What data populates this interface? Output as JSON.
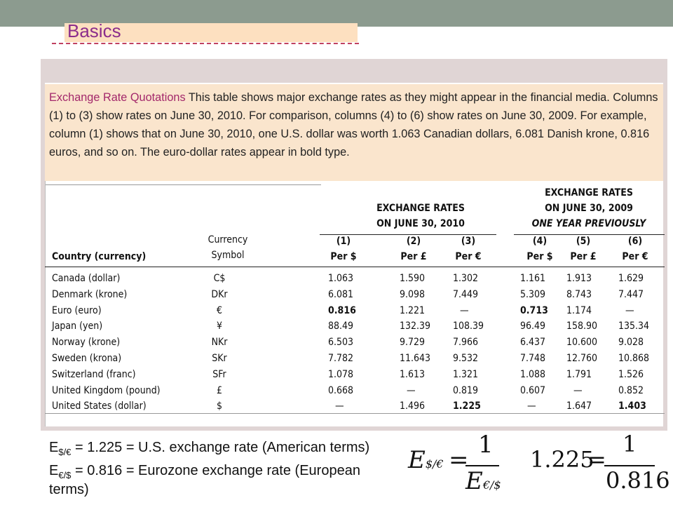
{
  "slide": {
    "title": "Basics"
  },
  "caption": {
    "lead": "Exchange Rate Quotations",
    "text": " This table shows major exchange rates as they might appear in the financial media. Columns (1) to (3) show rates on June 30, 2010. For comparison, columns (4) to (6) show rates on June 30, 2009. For example, column (1) shows that on June 30, 2010, one U.S. dollar was worth 1.063 Canadian dollars, 6.081 Danish krone, 0.816 euros, and so on. The euro-dollar rates appear in bold type."
  },
  "table": {
    "country_header": "Country (currency)",
    "symbol_header_1": "Currency",
    "symbol_header_2": "Symbol",
    "group1_line1": "EXCHANGE RATES",
    "group1_line2": "ON JUNE 30, 2010",
    "group2_line1": "EXCHANGE RATES",
    "group2_line2": "ON JUNE 30, 2009",
    "group2_line3": "ONE YEAR PREVIOUSLY",
    "col_nums": [
      "(1)",
      "(2)",
      "(3)",
      "(4)",
      "(5)",
      "(6)"
    ],
    "col_units": [
      "Per $",
      "Per £",
      "Per €",
      "Per $",
      "Per £",
      "Per €"
    ],
    "rows": [
      {
        "country": "Canada (dollar)",
        "symbol": "C$",
        "v": [
          "1.063",
          "1.590",
          "1.302",
          "1.161",
          "1.913",
          "1.629"
        ]
      },
      {
        "country": "Denmark (krone)",
        "symbol": "DKr",
        "v": [
          "6.081",
          "9.098",
          "7.449",
          "5.309",
          "8.743",
          "7.447"
        ]
      },
      {
        "country": "Euro (euro)",
        "symbol": "€",
        "v": [
          "0.816",
          "1.221",
          "—",
          "0.713",
          "1.174",
          "—"
        ]
      },
      {
        "country": "Japan (yen)",
        "symbol": "¥",
        "v": [
          "88.49",
          "132.39",
          "108.39",
          "96.49",
          "158.90",
          "135.34"
        ]
      },
      {
        "country": "Norway (krone)",
        "symbol": "NKr",
        "v": [
          "6.503",
          "9.729",
          "7.966",
          "6.437",
          "10.600",
          "9.028"
        ]
      },
      {
        "country": "Sweden (krona)",
        "symbol": "SKr",
        "v": [
          "7.782",
          "11.643",
          "9.532",
          "7.748",
          "12.760",
          "10.868"
        ]
      },
      {
        "country": "Switzerland (franc)",
        "symbol": "SFr",
        "v": [
          "1.078",
          "1.613",
          "1.321",
          "1.088",
          "1.791",
          "1.526"
        ]
      },
      {
        "country": "United Kingdom (pound)",
        "symbol": "£",
        "v": [
          "0.668",
          "—",
          "0.819",
          "0.607",
          "—",
          "0.852"
        ]
      },
      {
        "country": "United States (dollar)",
        "symbol": "$",
        "v": [
          "—",
          "1.496",
          "1.225",
          "—",
          "1.647",
          "1.403"
        ]
      }
    ]
  },
  "formulas": {
    "line1_pre": "E",
    "line1_sub": "$/€",
    "line1_post": " = 1.225 = U.S. exchange rate (American terms)",
    "line2_pre": "E",
    "line2_sub": "€/$",
    "line2_post": " = 0.816 = Eurozone exchange rate (European",
    "line3": "terms)",
    "eq_lhs": "E",
    "eq_lhs_sub": "$/€",
    "eq_equals": "=",
    "eq_num": "1",
    "eq_den": "E",
    "eq_den_sub": "€/$",
    "eq2_lhs": "1.225",
    "eq2_equals": "=",
    "eq2_num": "1",
    "eq2_den": "0.816"
  }
}
